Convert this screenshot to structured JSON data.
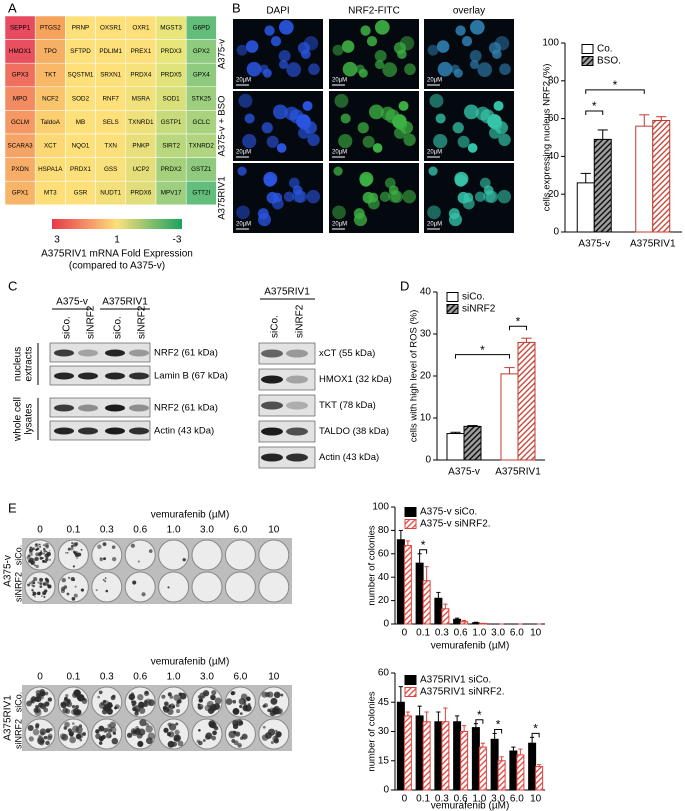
{
  "panel_labels": [
    "A",
    "B",
    "C",
    "D",
    "E"
  ],
  "heatmap": {
    "rows": [
      [
        "SEPP1",
        "PTGS2",
        "PRNP",
        "OXSR1",
        "OXR1",
        "MGST3",
        "G6PD"
      ],
      [
        "HMOX1",
        "TPO",
        "SFTPD",
        "PDLIM1",
        "PREX1",
        "PRDX3",
        "GPX2"
      ],
      [
        "GPX3",
        "TKT",
        "SQSTM1",
        "SRXN1",
        "PRDX4",
        "PRDX5",
        "GPX4"
      ],
      [
        "MPO",
        "NCF2",
        "SOD2",
        "RNF7",
        "MSRA",
        "SOD1",
        "STK25"
      ],
      [
        "GCLM",
        "TaldoA",
        "MB",
        "SELS",
        "TXNRD1",
        "GSTP1",
        "GCLC"
      ],
      [
        "SCARA3",
        "XCT",
        "NQO1",
        "TXN",
        "PNKP",
        "SIRT2",
        "TXNRD2"
      ],
      [
        "PXDN",
        "HSPA1A",
        "PRDX1",
        "GSS",
        "UCP2",
        "PRDX2",
        "GSTZ1"
      ],
      [
        "GPX1",
        "MT3",
        "GSR",
        "NUDT1",
        "PRDX6",
        "MPV17",
        "GTT2I"
      ]
    ],
    "colors": [
      [
        "#e84a5f",
        "#f7a35c",
        "#fde07a",
        "#fde07a",
        "#fde07a",
        "#e8e57a",
        "#63be7b"
      ],
      [
        "#e8505f",
        "#f6b065",
        "#fde07a",
        "#fde07a",
        "#fde07a",
        "#e8e57a",
        "#8ecb7e"
      ],
      [
        "#f07060",
        "#f8b868",
        "#fde07a",
        "#fde07a",
        "#f5e27b",
        "#e0e27a",
        "#8ecb7e"
      ],
      [
        "#f28a62",
        "#f9c46c",
        "#fde07a",
        "#fde07a",
        "#f1e17b",
        "#d9e07a",
        "#9dcf7e"
      ],
      [
        "#f59864",
        "#fbcf70",
        "#fde07a",
        "#fde07a",
        "#eee07b",
        "#c8db7c",
        "#a8d27e"
      ],
      [
        "#f6a465",
        "#fcd874",
        "#fde07a",
        "#fbe07a",
        "#e8df7a",
        "#b9d77c",
        "#b0d47f"
      ],
      [
        "#f7ad67",
        "#fcdc77",
        "#fde07a",
        "#f8e07a",
        "#e4de7a",
        "#a5d17d",
        "#8ecb7e"
      ],
      [
        "#f8b468",
        "#fdde78",
        "#fde07a",
        "#f4e07b",
        "#e0dd7a",
        "#9dcf7e",
        "#63be7b"
      ]
    ],
    "colorbar": {
      "ticks": [
        3,
        1,
        -3
      ],
      "colors": [
        "#e8384a",
        "#fde07a",
        "#1aa260"
      ],
      "caption": [
        "A375RIV1 mRNA Fold Expression",
        "(compared to A375-v)"
      ]
    }
  },
  "microscopy": {
    "columns": [
      "DAPI",
      "NRF2-FITC",
      "overlay"
    ],
    "rows": [
      "A375-v",
      "A375-v + BSO",
      "A375RIV1"
    ],
    "scale_bar": "20µM"
  },
  "blots": {
    "left": {
      "groups": [
        "A375-v",
        "A375RIV1"
      ],
      "lanes": [
        "siCo.",
        "siNRF2",
        "siCo.",
        "siNRF2"
      ],
      "fractions": [
        [
          "nucleus",
          "extracts"
        ],
        [
          "whole cell",
          "lysates"
        ]
      ],
      "bands": [
        "NRF2 (61 kDa)",
        "Lamin B (67 kDa)",
        "NRF2 (61 kDa)",
        "Actin (43 kDa)"
      ]
    },
    "right": {
      "group": "A375RIV1",
      "lanes": [
        "siCo.",
        "siNRF2"
      ],
      "bands": [
        "xCT (55 kDa)",
        "HMOX1 (32 kDa)",
        "TKT (78 kDa)",
        "TALDO (38 kDa)",
        "Actin (43 kDa)"
      ]
    }
  },
  "colony": {
    "title": "vemurafenib (µM)",
    "doses": [
      "0",
      "0.1",
      "0.3",
      "0.6",
      "1.0",
      "3.0",
      "6.0",
      "10"
    ],
    "panels": [
      {
        "line": "A375-v",
        "rows": [
          "siCo.",
          "siNRF2"
        ]
      },
      {
        "line": "A375RIV1",
        "rows": [
          "siCo.",
          "siNRF2"
        ]
      }
    ]
  },
  "chart_data": [
    {
      "type": "bar",
      "ylabel": "cells expressing nucleus NRF2 (%)",
      "ylim": [
        0,
        100
      ],
      "yticks": [
        0,
        20,
        40,
        60,
        80,
        100
      ],
      "categories": [
        "A375-v",
        "A375RIV1"
      ],
      "category_colors": [
        "#000000",
        "#c0392b"
      ],
      "series": [
        {
          "name": "Co.",
          "color": "#ffffff",
          "hatch": false,
          "values": [
            26,
            56
          ],
          "errors": [
            5,
            6
          ]
        },
        {
          "name": "BSO.",
          "color": "#a0a0a0",
          "hatch": true,
          "values": [
            49,
            59
          ],
          "errors": [
            5,
            2
          ]
        }
      ],
      "annotations": [
        "*",
        "*"
      ]
    },
    {
      "type": "bar",
      "ylabel": "cells with high level of ROS (%)",
      "ylim": [
        0,
        40
      ],
      "yticks": [
        0,
        10,
        20,
        30,
        40
      ],
      "categories": [
        "A375-v",
        "A375RIV1"
      ],
      "category_colors": [
        "#000000",
        "#c0392b"
      ],
      "series": [
        {
          "name": "siCo.",
          "color": "#ffffff",
          "hatch": false,
          "values": [
            6.3,
            20.5
          ],
          "errors": [
            0.3,
            1.5
          ]
        },
        {
          "name": "siNRF2",
          "color": "#a0a0a0",
          "hatch": true,
          "values": [
            8,
            28
          ],
          "errors": [
            0.2,
            1
          ]
        }
      ],
      "annotations": [
        "*",
        "*"
      ]
    },
    {
      "type": "bar",
      "ylabel": "number of colonies",
      "xlabel": "vemurafenib (µM)",
      "ylim": [
        0,
        100
      ],
      "yticks": [
        0,
        20,
        40,
        60,
        80,
        100
      ],
      "categories": [
        "0",
        "0.1",
        "0.3",
        "0.6",
        "1.0",
        "3.0",
        "6.0",
        "10"
      ],
      "series": [
        {
          "name": "A375-v siCo.",
          "color": "#000000",
          "hatch": false,
          "values": [
            72,
            52,
            22,
            4,
            1,
            0,
            0,
            0
          ],
          "errors": [
            8,
            8,
            5,
            1,
            0.5,
            0,
            0,
            0
          ]
        },
        {
          "name": "A375-v siNRF2.",
          "color": "#e0403a",
          "hatch": true,
          "values": [
            67,
            37,
            13,
            2,
            0.5,
            0,
            0,
            0
          ],
          "errors": [
            4,
            12,
            4,
            1,
            0,
            0,
            0,
            0
          ]
        }
      ],
      "annotations": [
        "*"
      ]
    },
    {
      "type": "bar",
      "ylabel": "number of colonies",
      "xlabel": "vemurafenib (µM)",
      "ylim": [
        0,
        60
      ],
      "yticks": [
        0,
        15,
        30,
        45,
        60
      ],
      "categories": [
        "0",
        "0.1",
        "0.3",
        "0.6",
        "1.0",
        "3.0",
        "6.0",
        "10"
      ],
      "series": [
        {
          "name": "A375RIV1 siCo.",
          "color": "#000000",
          "hatch": false,
          "values": [
            45,
            38,
            35,
            35,
            32,
            26,
            20,
            24
          ],
          "errors": [
            8,
            5,
            5,
            3,
            2,
            3,
            2,
            3
          ]
        },
        {
          "name": "A375RIV1 siNRF2.",
          "color": "#e0403a",
          "hatch": true,
          "values": [
            38,
            35,
            35,
            30,
            22,
            15,
            18,
            12
          ],
          "errors": [
            2,
            5,
            7,
            3,
            2,
            2,
            3,
            1
          ]
        }
      ],
      "annotations": [
        "*",
        "*",
        "*"
      ]
    }
  ]
}
